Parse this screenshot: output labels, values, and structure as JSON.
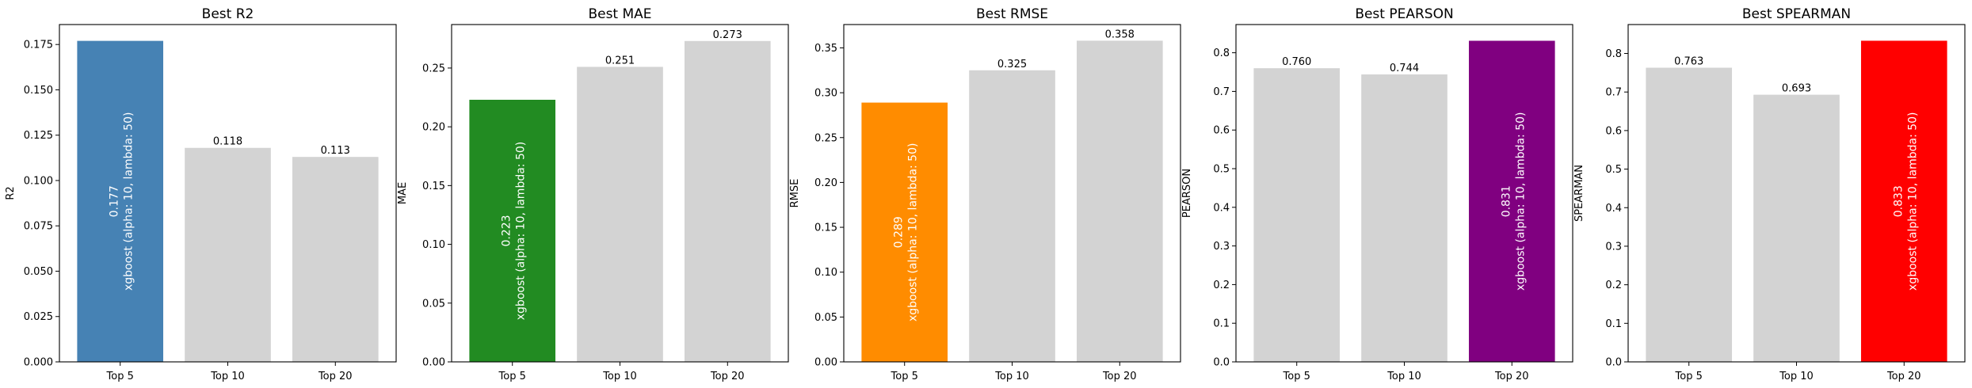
{
  "chart_data": [
    {
      "type": "bar",
      "title": "Best R2",
      "ylabel": "R2",
      "xlabel": "",
      "categories": [
        "Top 5",
        "Top 10",
        "Top 20"
      ],
      "values": [
        0.177,
        0.118,
        0.113
      ],
      "value_labels": [
        "0.177",
        "0.118",
        "0.113"
      ],
      "ylim": [
        0,
        0.186
      ],
      "yticks": [
        0,
        0.025,
        0.05,
        0.075,
        0.1,
        0.125,
        0.15,
        0.175
      ],
      "ytick_labels": [
        "0.000",
        "0.025",
        "0.050",
        "0.075",
        "0.100",
        "0.125",
        "0.150",
        "0.175"
      ],
      "best_index": 0,
      "best_color": "#4682b4",
      "other_color": "#d3d3d3",
      "best_label_lines": [
        "0.177",
        "xgboost (alpha: 10, lambda: 50)"
      ]
    },
    {
      "type": "bar",
      "title": "Best MAE",
      "ylabel": "MAE",
      "xlabel": "",
      "categories": [
        "Top 5",
        "Top 10",
        "Top 20"
      ],
      "values": [
        0.223,
        0.251,
        0.273
      ],
      "value_labels": [
        "0.223",
        "0.251",
        "0.273"
      ],
      "ylim": [
        0,
        0.287
      ],
      "yticks": [
        0,
        0.05,
        0.1,
        0.15,
        0.2,
        0.25
      ],
      "ytick_labels": [
        "0.00",
        "0.05",
        "0.10",
        "0.15",
        "0.20",
        "0.25"
      ],
      "best_index": 0,
      "best_color": "#228b22",
      "other_color": "#d3d3d3",
      "best_label_lines": [
        "0.223",
        "xgboost (alpha: 10, lambda: 50)"
      ]
    },
    {
      "type": "bar",
      "title": "Best RMSE",
      "ylabel": "RMSE",
      "xlabel": "",
      "categories": [
        "Top 5",
        "Top 10",
        "Top 20"
      ],
      "values": [
        0.289,
        0.325,
        0.358
      ],
      "value_labels": [
        "0.289",
        "0.325",
        "0.358"
      ],
      "ylim": [
        0,
        0.376
      ],
      "yticks": [
        0,
        0.05,
        0.1,
        0.15,
        0.2,
        0.25,
        0.3,
        0.35
      ],
      "ytick_labels": [
        "0.00",
        "0.05",
        "0.10",
        "0.15",
        "0.20",
        "0.25",
        "0.30",
        "0.35"
      ],
      "best_index": 0,
      "best_color": "#ff8c00",
      "other_color": "#d3d3d3",
      "best_label_lines": [
        "0.289",
        "xgboost (alpha: 10, lambda: 50)"
      ]
    },
    {
      "type": "bar",
      "title": "Best PEARSON",
      "ylabel": "PEARSON",
      "xlabel": "",
      "categories": [
        "Top 5",
        "Top 10",
        "Top 20"
      ],
      "values": [
        0.76,
        0.744,
        0.831
      ],
      "value_labels": [
        "0.760",
        "0.744",
        "0.831"
      ],
      "ylim": [
        0,
        0.873
      ],
      "yticks": [
        0,
        0.1,
        0.2,
        0.3,
        0.4,
        0.5,
        0.6,
        0.7,
        0.8
      ],
      "ytick_labels": [
        "0.0",
        "0.1",
        "0.2",
        "0.3",
        "0.4",
        "0.5",
        "0.6",
        "0.7",
        "0.8"
      ],
      "best_index": 2,
      "best_color": "#800080",
      "other_color": "#d3d3d3",
      "best_label_lines": [
        "0.831",
        "xgboost (alpha: 10, lambda: 50)"
      ]
    },
    {
      "type": "bar",
      "title": "Best SPEARMAN",
      "ylabel": "SPEARMAN",
      "xlabel": "",
      "categories": [
        "Top 5",
        "Top 10",
        "Top 20"
      ],
      "values": [
        0.763,
        0.693,
        0.833
      ],
      "value_labels": [
        "0.763",
        "0.693",
        "0.833"
      ],
      "ylim": [
        0,
        0.875
      ],
      "yticks": [
        0,
        0.1,
        0.2,
        0.3,
        0.4,
        0.5,
        0.6,
        0.7,
        0.8
      ],
      "ytick_labels": [
        "0.0",
        "0.1",
        "0.2",
        "0.3",
        "0.4",
        "0.5",
        "0.6",
        "0.7",
        "0.8"
      ],
      "best_index": 2,
      "best_color": "#ff0000",
      "other_color": "#d3d3d3",
      "best_label_lines": [
        "0.833",
        "xgboost (alpha: 10, lambda: 50)"
      ]
    }
  ]
}
